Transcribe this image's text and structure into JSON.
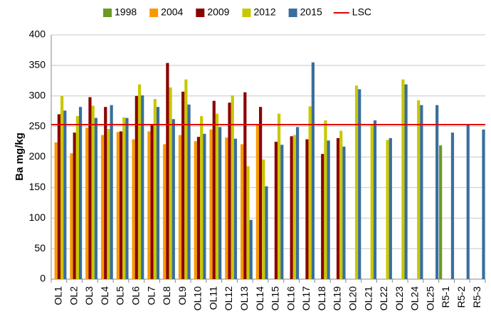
{
  "chart_data": {
    "type": "bar",
    "y_label": "Ba mg/kg",
    "categories": [
      "OL1",
      "OL2",
      "OL3",
      "OL4",
      "OL5",
      "OL6",
      "OL7",
      "OL8",
      "OL9",
      "OL10",
      "OL11",
      "OL12",
      "OL13",
      "OL14",
      "OL15",
      "OL16",
      "OL17",
      "OL18",
      "OL19",
      "OL20",
      "OL21",
      "OL22",
      "OL23",
      "OL24",
      "OL25",
      "R5-1",
      "R5-2",
      "R5-3"
    ],
    "series": [
      {
        "name": "1998",
        "color": "#6a9a1f",
        "values": [
          null,
          null,
          null,
          null,
          null,
          null,
          null,
          null,
          null,
          null,
          null,
          null,
          null,
          null,
          null,
          null,
          null,
          null,
          null,
          null,
          null,
          null,
          null,
          null,
          null,
          219,
          null,
          null
        ]
      },
      {
        "name": "2004",
        "color": "#f79a00",
        "values": [
          224,
          206,
          248,
          236,
          241,
          229,
          242,
          221,
          236,
          226,
          245,
          232,
          221,
          252,
          null,
          null,
          null,
          null,
          null,
          null,
          null,
          null,
          null,
          null,
          null,
          null,
          null,
          null
        ]
      },
      {
        "name": "2009",
        "color": "#8b0000",
        "values": [
          270,
          240,
          298,
          282,
          242,
          300,
          253,
          354,
          307,
          233,
          292,
          289,
          306,
          282,
          225,
          234,
          229,
          205,
          231,
          null,
          null,
          null,
          null,
          null,
          null,
          null,
          null,
          null
        ]
      },
      {
        "name": "2012",
        "color": "#c8c800",
        "values": [
          300,
          267,
          284,
          246,
          265,
          319,
          295,
          314,
          327,
          267,
          271,
          301,
          185,
          196,
          271,
          236,
          283,
          260,
          243,
          317,
          253,
          228,
          327,
          293,
          null,
          null,
          null,
          null
        ]
      },
      {
        "name": "2015",
        "color": "#3a6e9c",
        "values": [
          276,
          282,
          264,
          285,
          264,
          301,
          282,
          262,
          286,
          238,
          249,
          230,
          97,
          152,
          220,
          249,
          355,
          227,
          217,
          311,
          260,
          231,
          319,
          285,
          285,
          240,
          253,
          245
        ]
      }
    ],
    "reference_line": {
      "name": "LSC",
      "value": 253,
      "color": "#e00000"
    },
    "ylim": [
      0,
      400
    ],
    "yticks": [
      0,
      50,
      100,
      150,
      200,
      250,
      300,
      350,
      400
    ],
    "grid": true
  }
}
